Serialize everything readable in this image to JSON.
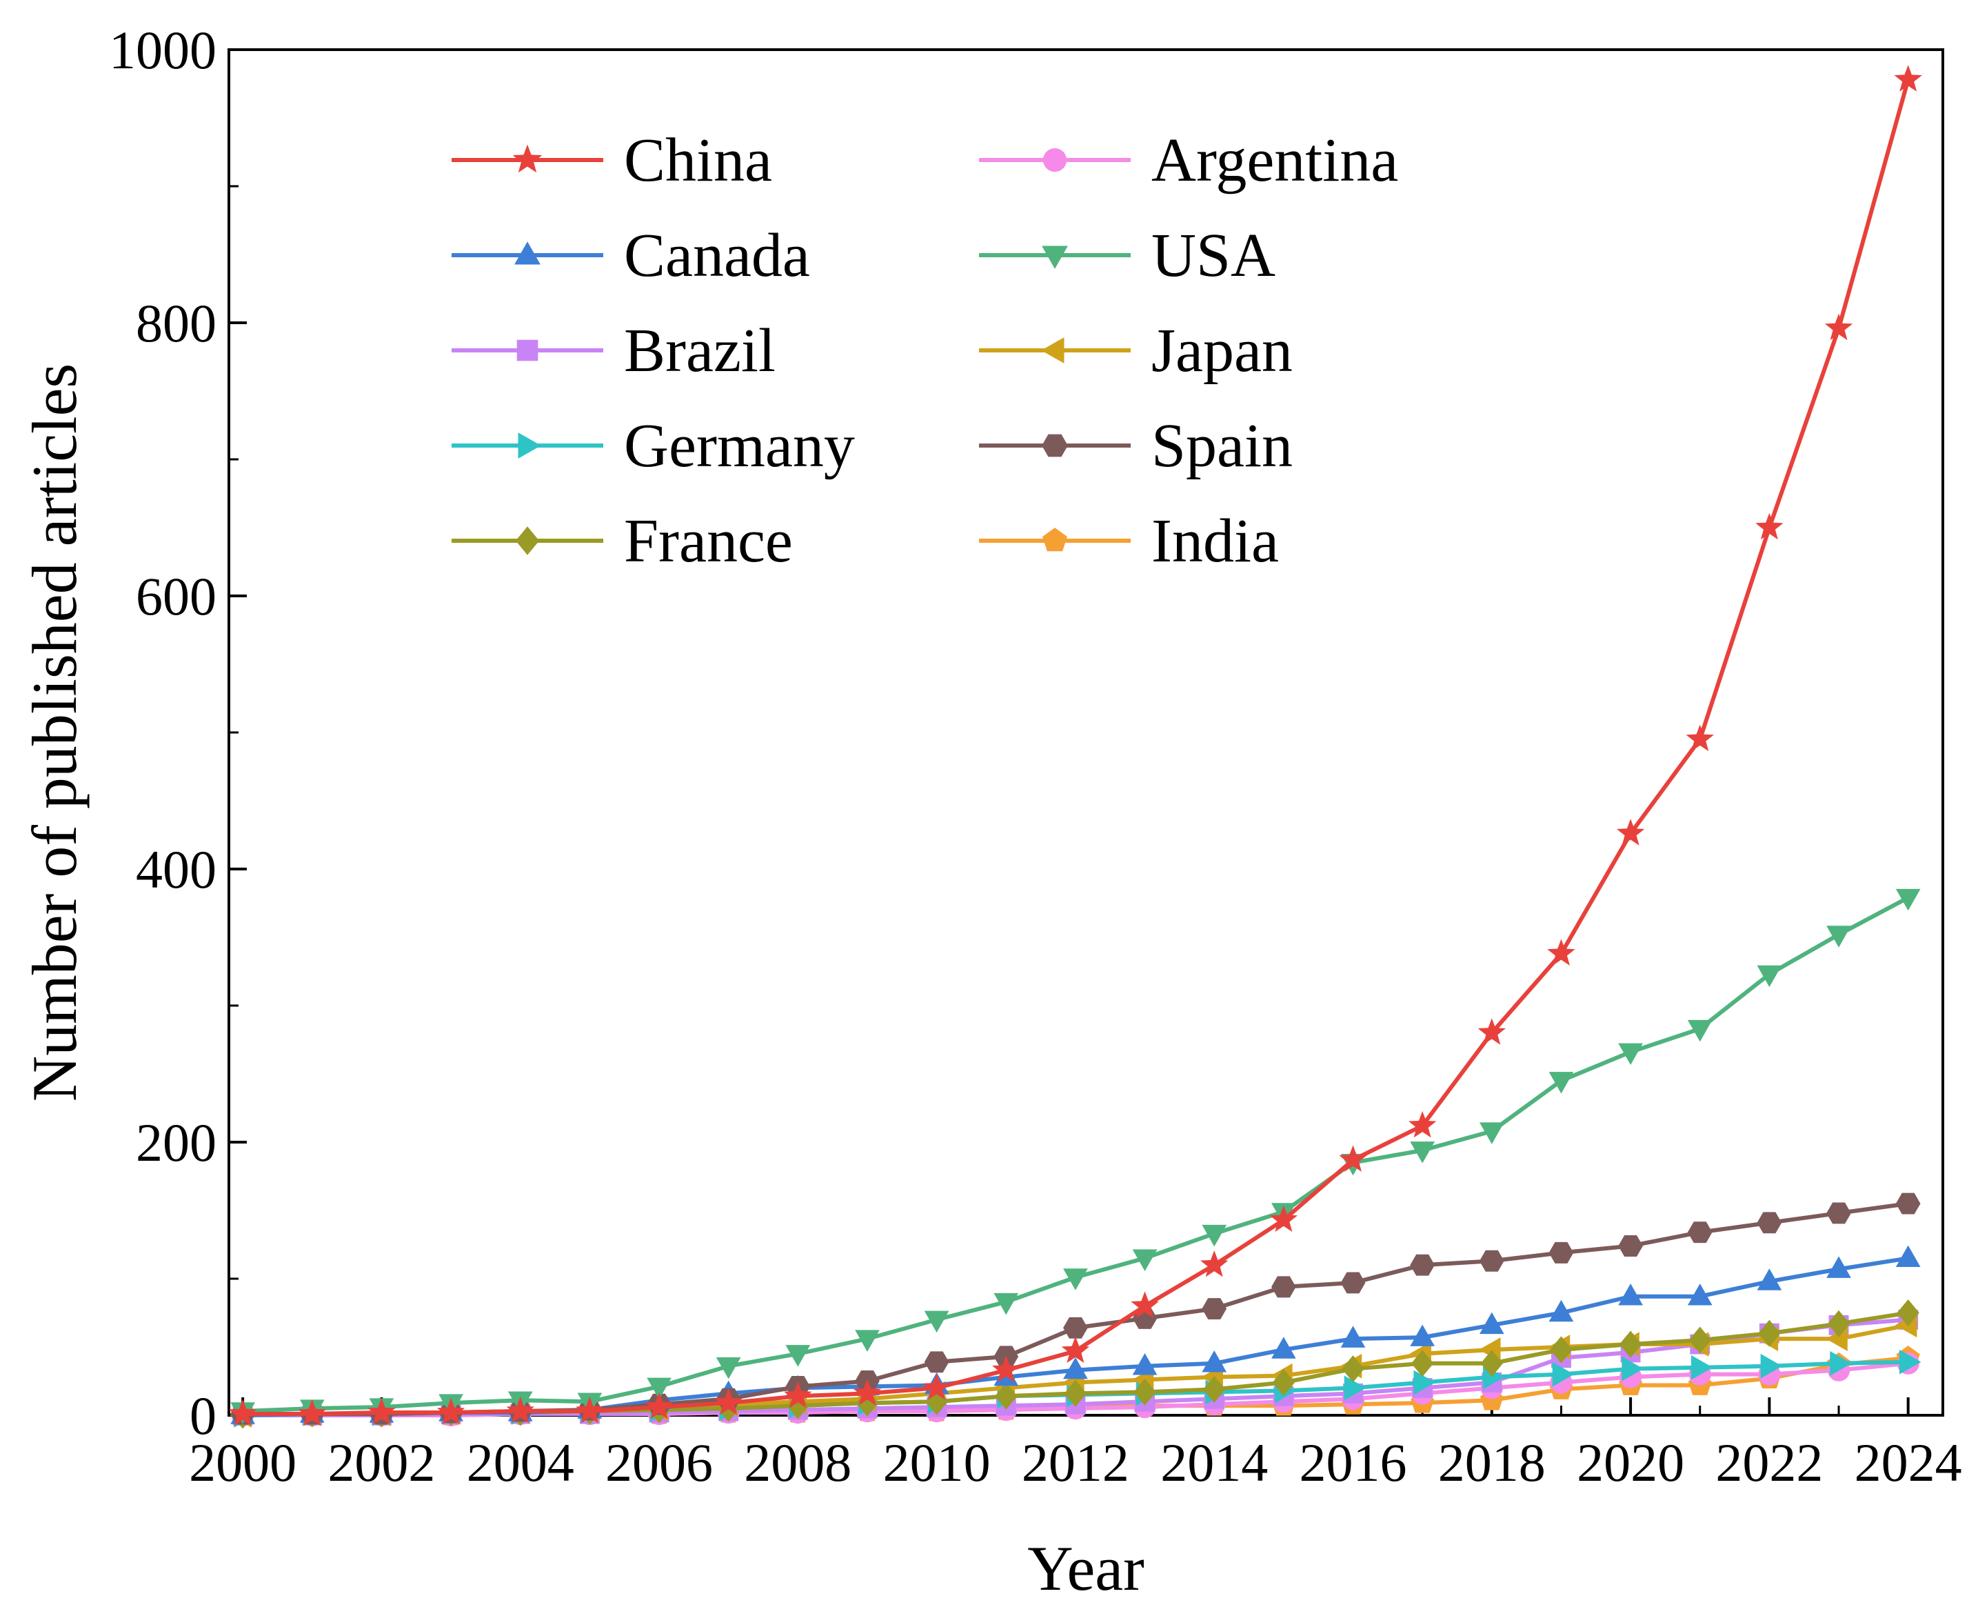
{
  "chart_data": {
    "type": "line",
    "title": "",
    "xlabel": "Year",
    "ylabel": "Number of published articles",
    "xlim": [
      1999.8,
      2024.5
    ],
    "ylim": [
      0,
      1000
    ],
    "x_ticks": [
      2000,
      2002,
      2004,
      2006,
      2008,
      2010,
      2012,
      2014,
      2016,
      2018,
      2020,
      2022,
      2024
    ],
    "y_ticks": [
      0,
      200,
      400,
      600,
      800,
      1000
    ],
    "x": [
      2000,
      2001,
      2002,
      2003,
      2004,
      2005,
      2006,
      2007,
      2008,
      2009,
      2010,
      2011,
      2012,
      2013,
      2014,
      2015,
      2016,
      2017,
      2018,
      2019,
      2020,
      2021,
      2022,
      2023,
      2024
    ],
    "grid": false,
    "legend_position": "top-left",
    "series": [
      {
        "name": "China",
        "color": "#e8413b",
        "marker": "star",
        "values": [
          1,
          1,
          2,
          2,
          3,
          3,
          6,
          9,
          14,
          16,
          20,
          33,
          47,
          80,
          110,
          143,
          187,
          212,
          280,
          338,
          426,
          495,
          650,
          796,
          978
        ]
      },
      {
        "name": "Canada",
        "color": "#3d7fd6",
        "marker": "triangle-up",
        "values": [
          0,
          1,
          1,
          2,
          2,
          4,
          11,
          16,
          20,
          21,
          22,
          28,
          33,
          36,
          38,
          48,
          56,
          57,
          66,
          75,
          87,
          87,
          98,
          107,
          115
        ]
      },
      {
        "name": "Brazil",
        "color": "#c884f5",
        "marker": "square",
        "values": [
          0,
          0,
          0,
          1,
          1,
          1,
          2,
          3,
          4,
          5,
          6,
          7,
          8,
          10,
          12,
          14,
          16,
          20,
          24,
          42,
          46,
          52,
          60,
          66,
          70
        ]
      },
      {
        "name": "Germany",
        "color": "#2ec3c7",
        "marker": "triangle-right",
        "values": [
          0,
          1,
          1,
          2,
          2,
          3,
          4,
          5,
          7,
          9,
          10,
          14,
          15,
          16,
          17,
          18,
          20,
          24,
          28,
          30,
          34,
          35,
          36,
          38,
          39
        ]
      },
      {
        "name": "France",
        "color": "#9a9a26",
        "marker": "diamond",
        "values": [
          0,
          1,
          1,
          2,
          2,
          3,
          4,
          5,
          7,
          9,
          10,
          14,
          16,
          17,
          19,
          24,
          34,
          38,
          38,
          48,
          52,
          55,
          60,
          67,
          75
        ]
      },
      {
        "name": "Argentina",
        "color": "#f58ae8",
        "marker": "circle",
        "values": [
          0,
          0,
          0,
          0,
          1,
          1,
          1,
          2,
          2,
          3,
          3,
          4,
          5,
          6,
          8,
          10,
          12,
          16,
          20,
          24,
          28,
          30,
          30,
          33,
          38
        ]
      },
      {
        "name": "USA",
        "color": "#4fb37e",
        "marker": "triangle-down",
        "values": [
          3,
          5,
          6,
          9,
          11,
          10,
          21,
          36,
          45,
          56,
          70,
          83,
          101,
          115,
          133,
          149,
          185,
          194,
          208,
          245,
          266,
          283,
          323,
          352,
          379
        ]
      },
      {
        "name": "Japan",
        "color": "#cfa21a",
        "marker": "triangle-left",
        "values": [
          0,
          1,
          1,
          2,
          3,
          3,
          5,
          8,
          10,
          12,
          16,
          20,
          24,
          26,
          28,
          29,
          36,
          45,
          48,
          50,
          52,
          52,
          56,
          56,
          66
        ]
      },
      {
        "name": "Spain",
        "color": "#7d5a5a",
        "marker": "hexagon",
        "values": [
          1,
          1,
          1,
          2,
          3,
          4,
          8,
          12,
          21,
          25,
          39,
          43,
          64,
          71,
          78,
          94,
          97,
          110,
          113,
          119,
          124,
          134,
          141,
          148,
          155
        ]
      },
      {
        "name": "India",
        "color": "#f5a033",
        "marker": "pentagon",
        "values": [
          0,
          0,
          0,
          0,
          1,
          1,
          1,
          2,
          2,
          3,
          3,
          4,
          6,
          7,
          7,
          7,
          8,
          9,
          11,
          19,
          22,
          22,
          27,
          37,
          42
        ]
      }
    ]
  }
}
